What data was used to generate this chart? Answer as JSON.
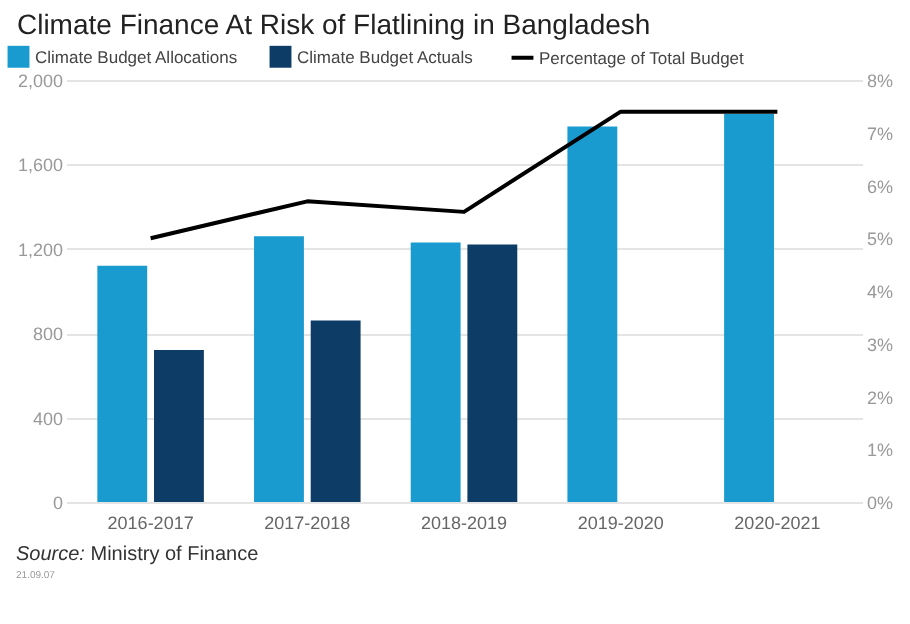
{
  "chart_data": {
    "type": "bar",
    "title": "Climate Finance At Risk of Flatlining in Bangladesh",
    "categories": [
      "2016-2017",
      "2017-2018",
      "2018-2019",
      "2019-2020",
      "2020-2021"
    ],
    "series": [
      {
        "name": "Climate Budget Allocations",
        "color": "#1a9bd0",
        "values": [
          1120,
          1260,
          1230,
          1780,
          1840
        ]
      },
      {
        "name": "Climate Budget Actuals",
        "color": "#0d3d66",
        "values": [
          720,
          860,
          1220,
          null,
          null
        ]
      },
      {
        "name": "Percentage of Total Budget",
        "type": "line",
        "axis": "y2",
        "color": "#000000",
        "values": [
          5.0,
          5.7,
          5.5,
          7.4,
          7.4
        ]
      }
    ],
    "ylim": [
      0,
      2000
    ],
    "yticks": [
      0,
      400,
      800,
      {
        "value": 1200,
        "label": "1,200"
      },
      {
        "value": 1600,
        "label": "1,600"
      },
      {
        "value": 2000,
        "label": "2,000"
      }
    ],
    "y2lim": [
      0,
      8
    ],
    "y2ticks": [
      {
        "value": 0,
        "label": "0%"
      },
      {
        "value": 1,
        "label": "1%"
      },
      {
        "value": 2,
        "label": "2%"
      },
      {
        "value": 3,
        "label": "3%"
      },
      {
        "value": 4,
        "label": "4%"
      },
      {
        "value": 5,
        "label": "5%"
      },
      {
        "value": 6,
        "label": "6%"
      },
      {
        "value": 7,
        "label": "7%"
      },
      {
        "value": 8,
        "label": "8%"
      }
    ],
    "grid": "y",
    "legend": "top left",
    "marker": "none",
    "annotations": [
      "Source: Ministry of Finance",
      "21.09.07"
    ]
  }
}
